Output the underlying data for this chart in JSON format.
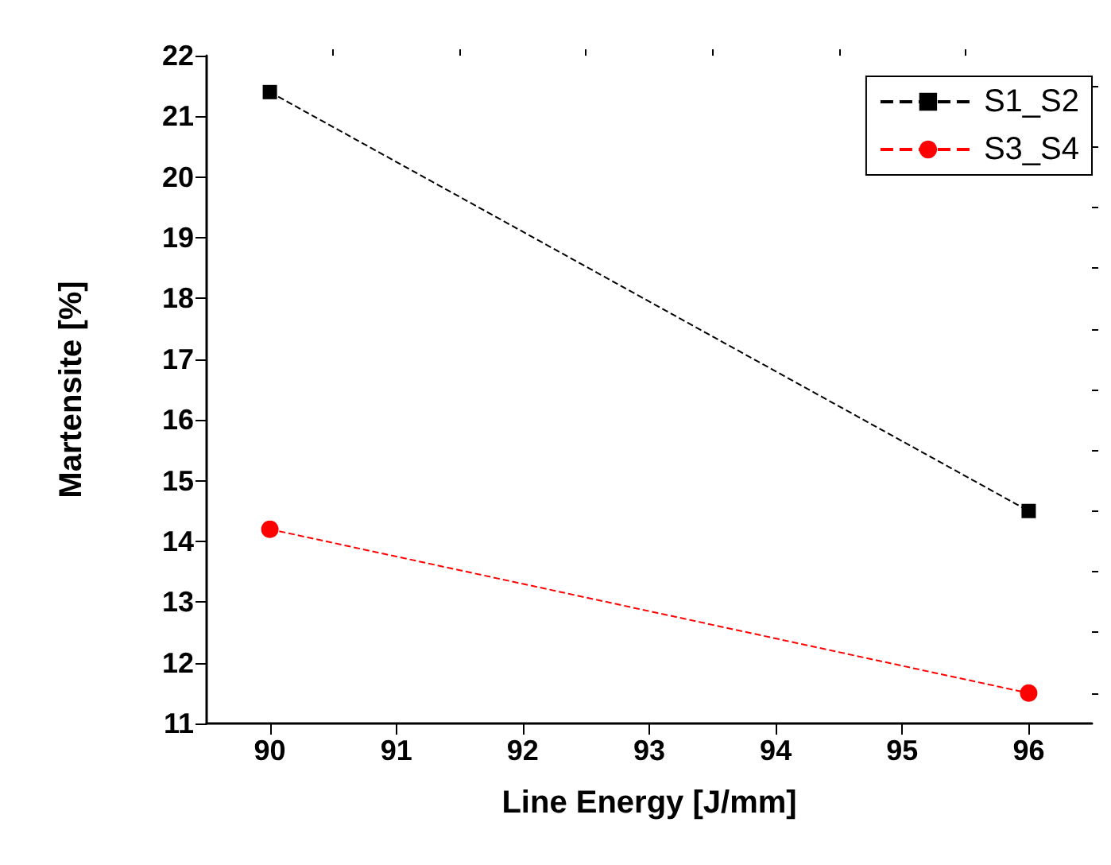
{
  "chart_data": {
    "type": "line",
    "xlabel": "Line Energy [J/mm]",
    "ylabel": "Martensite [%]",
    "x": [
      90,
      96
    ],
    "series": [
      {
        "name": "S1_S2",
        "color": "#000000",
        "marker": "square",
        "values": [
          21.4,
          14.5
        ]
      },
      {
        "name": "S3_S4",
        "color": "#ff0000",
        "marker": "circle",
        "values": [
          14.2,
          11.5
        ]
      }
    ],
    "xlim": [
      89.5,
      96.5
    ],
    "xticks": [
      90,
      91,
      92,
      93,
      94,
      95,
      96
    ],
    "ylim": [
      11,
      22
    ],
    "yticks": [
      11,
      12,
      13,
      14,
      15,
      16,
      17,
      18,
      19,
      20,
      21,
      22
    ],
    "line_style": "dashed",
    "legend": "top right",
    "grid": false
  }
}
